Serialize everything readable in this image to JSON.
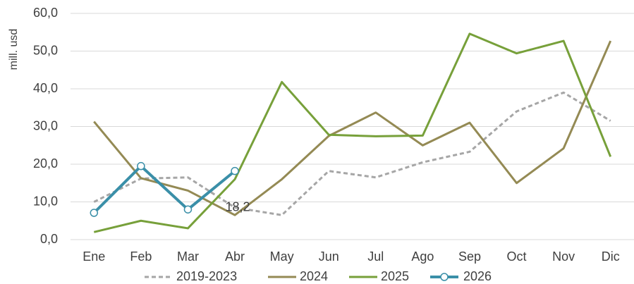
{
  "chart_data": {
    "type": "line",
    "y_label": "mill. usd",
    "categories": [
      "Ene",
      "Feb",
      "Mar",
      "Abr",
      "May",
      "Jun",
      "Jul",
      "Ago",
      "Sep",
      "Oct",
      "Nov",
      "Dic"
    ],
    "ylim": [
      0,
      60
    ],
    "yticks": [
      {
        "value": 0,
        "label": "0,0"
      },
      {
        "value": 10,
        "label": "10,0"
      },
      {
        "value": 20,
        "label": "20,0"
      },
      {
        "value": 30,
        "label": "30,0"
      },
      {
        "value": 40,
        "label": "40,0"
      },
      {
        "value": 50,
        "label": "50,0"
      },
      {
        "value": 60,
        "label": "60,0"
      }
    ],
    "grid": true,
    "legend": "bottom",
    "series": [
      {
        "name": "2019-2023",
        "color": "#a6a6a6",
        "dashed": true,
        "values": [
          10,
          16.2,
          16.5,
          8.5,
          6.5,
          18.2,
          16.5,
          20.5,
          23.3,
          34,
          39,
          31.5
        ]
      },
      {
        "name": "2024",
        "color": "#948a54",
        "values": [
          31.3,
          16.3,
          13,
          6.5,
          16,
          27.5,
          33.7,
          25,
          31,
          15,
          24.2,
          52.7
        ]
      },
      {
        "name": "2025",
        "color": "#77a03a",
        "values": [
          2,
          5,
          3,
          16,
          41.8,
          27.8,
          27.4,
          27.6,
          54.6,
          49.4,
          52.7,
          22
        ]
      },
      {
        "name": "2026",
        "color": "#3a8fa8",
        "markers": true,
        "values": [
          7.1,
          19.5,
          8,
          18.2,
          null,
          null,
          null,
          null,
          null,
          null,
          null,
          null
        ],
        "value_labels": [
          null,
          null,
          null,
          "18,2",
          null,
          null,
          null,
          null,
          null,
          null,
          null,
          null
        ]
      }
    ]
  }
}
